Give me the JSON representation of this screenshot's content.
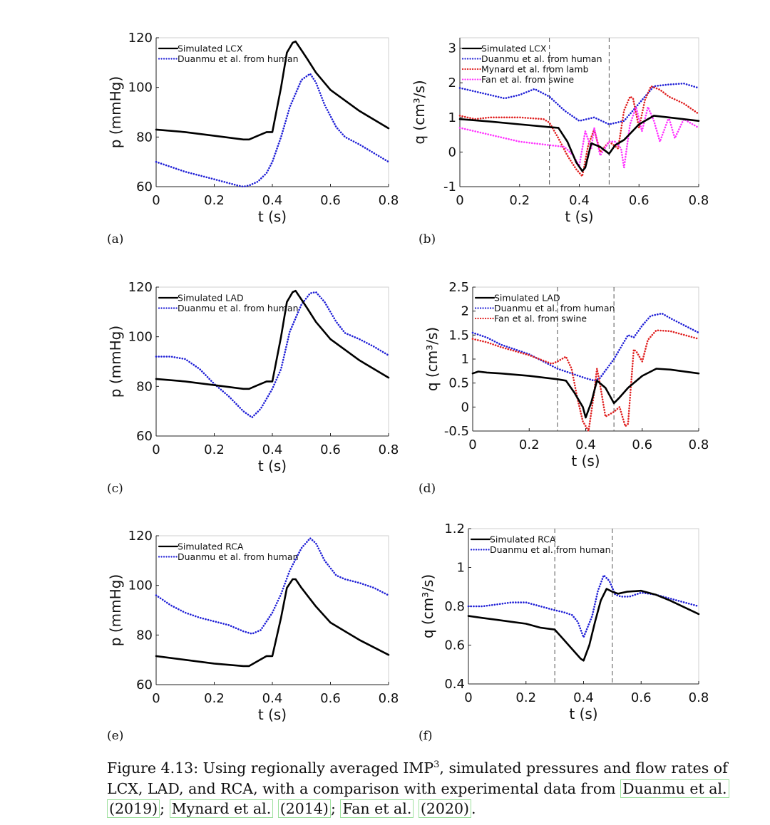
{
  "figure": {
    "sublabels": [
      "(a)",
      "(b)",
      "(c)",
      "(d)",
      "(e)",
      "(f)"
    ],
    "caption": {
      "p1": "Figure 4.13: Using regionally averaged IMP",
      "sup": "3",
      "p2": ", simulated pressures and flow rates of LCX, LAD, and RCA, with a comparison with experimental data from ",
      "c1a": "Duanmu et al.",
      "c1b": "(2019)",
      "s1": "; ",
      "c2a": "Mynard et al.",
      "c2b": "(2014)",
      "s2": "; ",
      "c3a": "Fan et al.",
      "c3b": "(2020)",
      "end": "."
    }
  },
  "chart_data": [
    {
      "type": "line",
      "id": "a",
      "xlabel": "t (s)",
      "ylabel": "p (mmHg)",
      "xlim": [
        0,
        0.8
      ],
      "ylim": [
        60,
        120
      ],
      "xticks": [
        "0",
        "0.2",
        "0.4",
        "0.6",
        "0.8"
      ],
      "yticks": [
        "60",
        "80",
        "100",
        "120"
      ],
      "grid": false,
      "legend_position": "top-left",
      "vlines": [],
      "series": [
        {
          "name": "Simulated LCX",
          "color": "#000000",
          "style": "solid",
          "x": [
            0,
            0.1,
            0.2,
            0.3,
            0.32,
            0.35,
            0.38,
            0.4,
            0.43,
            0.45,
            0.47,
            0.48,
            0.5,
            0.52,
            0.55,
            0.6,
            0.7,
            0.8
          ],
          "y": [
            83,
            82,
            80.5,
            79,
            79,
            80.5,
            82,
            82,
            100,
            114,
            118,
            118.5,
            115,
            111.5,
            106,
            99,
            90.5,
            83.5
          ]
        },
        {
          "name": "Duanmu et al. from human",
          "color": "#1f1fd6",
          "style": "dotted",
          "x": [
            0,
            0.1,
            0.2,
            0.28,
            0.3,
            0.32,
            0.35,
            0.38,
            0.4,
            0.43,
            0.46,
            0.5,
            0.53,
            0.55,
            0.58,
            0.62,
            0.65,
            0.7,
            0.75,
            0.8
          ],
          "y": [
            70,
            66,
            63,
            60.5,
            60,
            60.5,
            62,
            65.5,
            70,
            80,
            92,
            103,
            105.5,
            102,
            93,
            84,
            80,
            77,
            73.5,
            70
          ]
        }
      ]
    },
    {
      "type": "line",
      "id": "b",
      "xlabel": "t (s)",
      "ylabel": "q (cm³/s)",
      "xlim": [
        0,
        0.8
      ],
      "ylim": [
        -1,
        3.3
      ],
      "xticks": [
        "0",
        "0.2",
        "0.4",
        "0.6",
        "0.8"
      ],
      "yticks": [
        "-1",
        "0",
        "1",
        "2",
        "3"
      ],
      "grid": false,
      "legend_position": "top-left",
      "vlines": [
        0.3,
        0.5
      ],
      "series": [
        {
          "name": "Simulated LCX",
          "color": "#000000",
          "style": "solid",
          "x": [
            0,
            0.1,
            0.2,
            0.3,
            0.33,
            0.36,
            0.39,
            0.41,
            0.42,
            0.44,
            0.47,
            0.5,
            0.52,
            0.55,
            0.6,
            0.65,
            0.7,
            0.8
          ],
          "y": [
            0.95,
            0.88,
            0.8,
            0.72,
            0.7,
            0.3,
            -0.3,
            -0.55,
            -0.45,
            0.25,
            0.15,
            -0.05,
            0.2,
            0.35,
            0.8,
            1.05,
            1.0,
            0.9
          ]
        },
        {
          "name": "Duanmu et al. from human",
          "color": "#1f1fd6",
          "style": "dotted",
          "x": [
            0,
            0.05,
            0.1,
            0.15,
            0.2,
            0.25,
            0.3,
            0.35,
            0.4,
            0.45,
            0.5,
            0.55,
            0.6,
            0.65,
            0.7,
            0.75,
            0.8
          ],
          "y": [
            1.85,
            1.75,
            1.65,
            1.55,
            1.65,
            1.82,
            1.6,
            1.2,
            0.9,
            1.0,
            0.8,
            0.9,
            1.4,
            1.9,
            1.95,
            1.98,
            1.85
          ]
        },
        {
          "name": "Mynard et al. from lamb",
          "color": "#e02020",
          "style": "dotted",
          "x": [
            0,
            0.05,
            0.1,
            0.2,
            0.28,
            0.3,
            0.33,
            0.36,
            0.39,
            0.41,
            0.43,
            0.45,
            0.47,
            0.5,
            0.53,
            0.55,
            0.57,
            0.58,
            0.6,
            0.62,
            0.64,
            0.67,
            0.7,
            0.75,
            0.8
          ],
          "y": [
            1.05,
            0.95,
            1.0,
            1.0,
            0.95,
            0.85,
            0.4,
            -0.1,
            -0.5,
            -0.7,
            0.2,
            0.65,
            0.0,
            0.3,
            0.1,
            1.2,
            1.6,
            1.55,
            0.7,
            1.5,
            1.9,
            1.8,
            1.6,
            1.4,
            1.1
          ]
        },
        {
          "name": "Fan et al. from swine",
          "color": "#ff33ff",
          "style": "dotted",
          "x": [
            0,
            0.1,
            0.2,
            0.3,
            0.35,
            0.38,
            0.4,
            0.42,
            0.44,
            0.45,
            0.47,
            0.5,
            0.52,
            0.54,
            0.55,
            0.57,
            0.59,
            0.61,
            0.63,
            0.65,
            0.67,
            0.7,
            0.72,
            0.75,
            0.8
          ],
          "y": [
            0.7,
            0.5,
            0.3,
            0.2,
            0.15,
            -0.1,
            -0.4,
            0.6,
            0.1,
            0.7,
            -0.1,
            0.3,
            0.3,
            0.1,
            -0.45,
            0.8,
            1.3,
            0.6,
            1.3,
            0.9,
            0.3,
            1.0,
            0.4,
            0.95,
            0.7
          ]
        }
      ]
    },
    {
      "type": "line",
      "id": "c",
      "xlabel": "t (s)",
      "ylabel": "p (mmHg)",
      "xlim": [
        0,
        0.8
      ],
      "ylim": [
        60,
        120
      ],
      "xticks": [
        "0",
        "0.2",
        "0.4",
        "0.6",
        "0.8"
      ],
      "yticks": [
        "60",
        "80",
        "100",
        "120"
      ],
      "grid": false,
      "legend_position": "top-left",
      "vlines": [],
      "series": [
        {
          "name": "Simulated LAD",
          "color": "#000000",
          "style": "solid",
          "x": [
            0,
            0.1,
            0.2,
            0.3,
            0.32,
            0.35,
            0.38,
            0.4,
            0.43,
            0.45,
            0.47,
            0.48,
            0.5,
            0.52,
            0.55,
            0.6,
            0.7,
            0.8
          ],
          "y": [
            83,
            82,
            80.5,
            79,
            79,
            80.5,
            82,
            82,
            100,
            114,
            118,
            118.5,
            115,
            111.5,
            106,
            99,
            90.5,
            83.5
          ]
        },
        {
          "name": "Duanmu et al. from human",
          "color": "#1f1fd6",
          "style": "dotted",
          "x": [
            0,
            0.05,
            0.1,
            0.15,
            0.2,
            0.25,
            0.3,
            0.33,
            0.36,
            0.4,
            0.43,
            0.46,
            0.5,
            0.53,
            0.55,
            0.58,
            0.62,
            0.65,
            0.7,
            0.75,
            0.8
          ],
          "y": [
            92,
            92,
            91,
            87,
            81,
            76,
            70,
            67.5,
            71,
            79,
            87,
            102,
            113,
            117.5,
            118,
            114,
            106,
            101.5,
            99,
            96,
            92.5
          ]
        }
      ]
    },
    {
      "type": "line",
      "id": "d",
      "xlabel": "t (s)",
      "ylabel": "q (cm³/s)",
      "xlim": [
        0,
        0.8
      ],
      "ylim": [
        -0.5,
        2.5
      ],
      "xticks": [
        "0",
        "0.2",
        "0.4",
        "0.6",
        "0.8"
      ],
      "yticks": [
        "-0.5",
        "0",
        "0.5",
        "1",
        "1.5",
        "2",
        "2.5"
      ],
      "grid": false,
      "legend_position": "top-left",
      "vlines": [
        0.3,
        0.5
      ],
      "series": [
        {
          "name": "Simulated LAD",
          "color": "#000000",
          "style": "solid",
          "x": [
            0,
            0.02,
            0.05,
            0.1,
            0.2,
            0.3,
            0.33,
            0.36,
            0.39,
            0.4,
            0.42,
            0.44,
            0.47,
            0.5,
            0.52,
            0.55,
            0.6,
            0.65,
            0.7,
            0.8
          ],
          "y": [
            0.7,
            0.74,
            0.72,
            0.7,
            0.65,
            0.58,
            0.55,
            0.3,
            0.0,
            -0.22,
            0.1,
            0.55,
            0.4,
            0.08,
            0.2,
            0.4,
            0.65,
            0.8,
            0.78,
            0.7
          ]
        },
        {
          "name": "Duanmu et al. from human",
          "color": "#1f1fd6",
          "style": "dotted",
          "x": [
            0,
            0.05,
            0.1,
            0.15,
            0.2,
            0.25,
            0.3,
            0.35,
            0.4,
            0.43,
            0.45,
            0.5,
            0.53,
            0.55,
            0.57,
            0.6,
            0.63,
            0.67,
            0.7,
            0.75,
            0.8
          ],
          "y": [
            1.55,
            1.45,
            1.3,
            1.2,
            1.1,
            0.95,
            0.8,
            0.7,
            0.6,
            0.55,
            0.6,
            1.0,
            1.3,
            1.5,
            1.45,
            1.7,
            1.9,
            1.95,
            1.85,
            1.7,
            1.55
          ]
        },
        {
          "name": "Fan et al. from swine",
          "color": "#e02020",
          "style": "dotted",
          "x": [
            0,
            0.05,
            0.1,
            0.2,
            0.28,
            0.3,
            0.33,
            0.35,
            0.37,
            0.39,
            0.41,
            0.43,
            0.44,
            0.45,
            0.47,
            0.5,
            0.52,
            0.54,
            0.55,
            0.57,
            0.58,
            0.6,
            0.62,
            0.65,
            0.7,
            0.75,
            0.8
          ],
          "y": [
            1.42,
            1.35,
            1.25,
            1.08,
            0.9,
            0.95,
            1.05,
            0.8,
            0.2,
            -0.3,
            -0.5,
            0.3,
            0.8,
            0.5,
            -0.2,
            -0.1,
            0.0,
            -0.4,
            -0.35,
            1.2,
            1.15,
            0.95,
            1.4,
            1.6,
            1.58,
            1.5,
            1.42
          ]
        }
      ]
    },
    {
      "type": "line",
      "id": "e",
      "xlabel": "t (s)",
      "ylabel": "p (mmHg)",
      "xlim": [
        0,
        0.8
      ],
      "ylim": [
        60,
        120
      ],
      "xticks": [
        "0",
        "0.2",
        "0.4",
        "0.6",
        "0.8"
      ],
      "yticks": [
        "60",
        "80",
        "100",
        "120"
      ],
      "grid": false,
      "legend_position": "top-left",
      "vlines": [],
      "series": [
        {
          "name": "Simulated RCA",
          "color": "#000000",
          "style": "solid",
          "x": [
            0,
            0.1,
            0.2,
            0.3,
            0.32,
            0.35,
            0.38,
            0.4,
            0.43,
            0.45,
            0.47,
            0.48,
            0.5,
            0.52,
            0.55,
            0.6,
            0.7,
            0.8
          ],
          "y": [
            71.5,
            70,
            68.5,
            67.5,
            67.5,
            69.5,
            71.5,
            71.5,
            87,
            99,
            102.5,
            102.5,
            99,
            96,
            91.5,
            85,
            78,
            72
          ]
        },
        {
          "name": "Duanmu et al. from human",
          "color": "#1f1fd6",
          "style": "dotted",
          "x": [
            0,
            0.05,
            0.1,
            0.15,
            0.2,
            0.25,
            0.3,
            0.33,
            0.36,
            0.4,
            0.43,
            0.46,
            0.5,
            0.53,
            0.55,
            0.58,
            0.62,
            0.65,
            0.7,
            0.75,
            0.8
          ],
          "y": [
            96,
            92,
            89,
            87,
            85.5,
            84,
            81.5,
            80.5,
            82,
            89,
            96.5,
            106,
            115,
            119,
            117,
            110,
            104,
            102.5,
            101,
            99,
            96
          ]
        }
      ]
    },
    {
      "type": "line",
      "id": "f",
      "xlabel": "t (s)",
      "ylabel": "q (cm³/s)",
      "xlim": [
        0,
        0.8
      ],
      "ylim": [
        0.4,
        1.2
      ],
      "xticks": [
        "0",
        "0.2",
        "0.4",
        "0.6",
        "0.8"
      ],
      "yticks": [
        "0.4",
        "0.6",
        "0.8",
        "1",
        "1.2"
      ],
      "grid": false,
      "legend_position": "top-left",
      "vlines": [
        0.3,
        0.5
      ],
      "series": [
        {
          "name": "Simulated RCA",
          "color": "#000000",
          "style": "solid",
          "x": [
            0,
            0.05,
            0.1,
            0.15,
            0.2,
            0.25,
            0.3,
            0.33,
            0.36,
            0.39,
            0.4,
            0.42,
            0.44,
            0.46,
            0.48,
            0.5,
            0.52,
            0.55,
            0.6,
            0.65,
            0.7,
            0.8
          ],
          "y": [
            0.75,
            0.74,
            0.73,
            0.72,
            0.71,
            0.69,
            0.68,
            0.63,
            0.58,
            0.53,
            0.52,
            0.6,
            0.72,
            0.83,
            0.89,
            0.875,
            0.865,
            0.875,
            0.88,
            0.86,
            0.83,
            0.76
          ]
        },
        {
          "name": "Duanmu et al. from human",
          "color": "#1f1fd6",
          "style": "dotted",
          "x": [
            0,
            0.05,
            0.1,
            0.15,
            0.2,
            0.25,
            0.3,
            0.33,
            0.36,
            0.38,
            0.4,
            0.43,
            0.45,
            0.47,
            0.49,
            0.51,
            0.53,
            0.56,
            0.6,
            0.65,
            0.7,
            0.8
          ],
          "y": [
            0.8,
            0.8,
            0.81,
            0.82,
            0.82,
            0.8,
            0.78,
            0.77,
            0.755,
            0.72,
            0.64,
            0.75,
            0.88,
            0.96,
            0.93,
            0.86,
            0.85,
            0.85,
            0.87,
            0.86,
            0.84,
            0.8
          ]
        }
      ]
    }
  ]
}
